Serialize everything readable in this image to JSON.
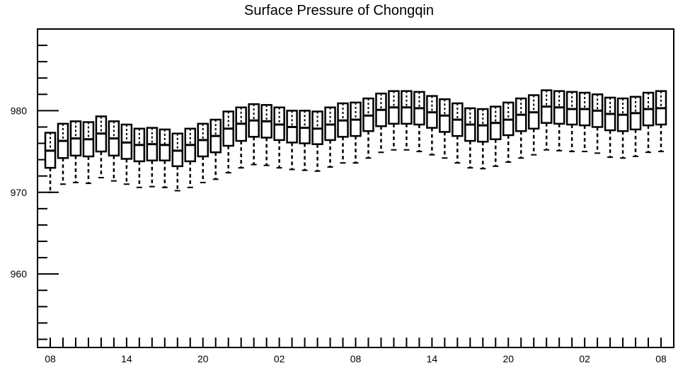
{
  "chart_data": {
    "type": "box",
    "title": "Surface Pressure of Chongqin",
    "xlabel": "",
    "ylabel": "",
    "ylim": [
      951,
      990
    ],
    "y_ticks": [
      960,
      970,
      980
    ],
    "x_tick_labels": [
      "08",
      "14",
      "20",
      "02",
      "08",
      "14",
      "20",
      "02",
      "08"
    ],
    "grid": false,
    "boxes": [
      {
        "x": 0,
        "min": 970.0,
        "q1": 973.0,
        "median": 975.1,
        "q3": 977.3,
        "max": 977.3
      },
      {
        "x": 1,
        "min": 971.0,
        "q1": 974.2,
        "median": 976.3,
        "q3": 978.4,
        "max": 978.4
      },
      {
        "x": 2,
        "min": 971.2,
        "q1": 974.5,
        "median": 976.6,
        "q3": 978.7,
        "max": 978.7
      },
      {
        "x": 3,
        "min": 971.1,
        "q1": 974.4,
        "median": 976.5,
        "q3": 978.6,
        "max": 978.6
      },
      {
        "x": 4,
        "min": 971.8,
        "q1": 975.0,
        "median": 977.2,
        "q3": 979.3,
        "max": 979.3
      },
      {
        "x": 5,
        "min": 971.4,
        "q1": 974.5,
        "median": 976.6,
        "q3": 978.7,
        "max": 978.7
      },
      {
        "x": 6,
        "min": 971.0,
        "q1": 974.1,
        "median": 976.1,
        "q3": 978.3,
        "max": 978.3
      },
      {
        "x": 7,
        "min": 970.6,
        "q1": 973.8,
        "median": 975.8,
        "q3": 977.8,
        "max": 977.8
      },
      {
        "x": 8,
        "min": 970.7,
        "q1": 973.9,
        "median": 975.9,
        "q3": 977.9,
        "max": 977.9
      },
      {
        "x": 9,
        "min": 970.6,
        "q1": 973.9,
        "median": 975.8,
        "q3": 977.7,
        "max": 977.7
      },
      {
        "x": 10,
        "min": 970.2,
        "q1": 973.2,
        "median": 975.1,
        "q3": 977.2,
        "max": 977.2
      },
      {
        "x": 11,
        "min": 970.6,
        "q1": 973.8,
        "median": 975.8,
        "q3": 977.8,
        "max": 977.8
      },
      {
        "x": 12,
        "min": 971.2,
        "q1": 974.4,
        "median": 976.4,
        "q3": 978.4,
        "max": 978.4
      },
      {
        "x": 13,
        "min": 971.6,
        "q1": 974.9,
        "median": 976.9,
        "q3": 978.9,
        "max": 978.9
      },
      {
        "x": 14,
        "min": 972.4,
        "q1": 975.7,
        "median": 977.8,
        "q3": 979.9,
        "max": 979.9
      },
      {
        "x": 15,
        "min": 973.0,
        "q1": 976.3,
        "median": 978.4,
        "q3": 980.4,
        "max": 980.4
      },
      {
        "x": 16,
        "min": 973.4,
        "q1": 976.8,
        "median": 978.8,
        "q3": 980.8,
        "max": 980.8
      },
      {
        "x": 17,
        "min": 973.3,
        "q1": 976.7,
        "median": 978.7,
        "q3": 980.7,
        "max": 980.7
      },
      {
        "x": 18,
        "min": 973.0,
        "q1": 976.4,
        "median": 978.3,
        "q3": 980.4,
        "max": 980.4
      },
      {
        "x": 19,
        "min": 972.8,
        "q1": 976.1,
        "median": 978.0,
        "q3": 980.0,
        "max": 980.0
      },
      {
        "x": 20,
        "min": 972.7,
        "q1": 976.0,
        "median": 977.9,
        "q3": 980.0,
        "max": 980.0
      },
      {
        "x": 21,
        "min": 972.6,
        "q1": 975.9,
        "median": 977.8,
        "q3": 979.9,
        "max": 979.9
      },
      {
        "x": 22,
        "min": 973.1,
        "q1": 976.4,
        "median": 978.3,
        "q3": 980.4,
        "max": 980.4
      },
      {
        "x": 23,
        "min": 973.6,
        "q1": 976.8,
        "median": 978.8,
        "q3": 980.9,
        "max": 980.9
      },
      {
        "x": 24,
        "min": 973.6,
        "q1": 976.9,
        "median": 978.9,
        "q3": 981.0,
        "max": 981.0
      },
      {
        "x": 25,
        "min": 974.2,
        "q1": 977.5,
        "median": 979.4,
        "q3": 981.5,
        "max": 981.5
      },
      {
        "x": 26,
        "min": 974.9,
        "q1": 978.1,
        "median": 980.1,
        "q3": 982.1,
        "max": 982.1
      },
      {
        "x": 27,
        "min": 975.2,
        "q1": 978.4,
        "median": 980.4,
        "q3": 982.4,
        "max": 982.4
      },
      {
        "x": 28,
        "min": 975.2,
        "q1": 978.4,
        "median": 980.4,
        "q3": 982.4,
        "max": 982.4
      },
      {
        "x": 29,
        "min": 975.0,
        "q1": 978.3,
        "median": 980.3,
        "q3": 982.3,
        "max": 982.3
      },
      {
        "x": 30,
        "min": 974.6,
        "q1": 977.9,
        "median": 979.8,
        "q3": 981.8,
        "max": 981.8
      },
      {
        "x": 31,
        "min": 974.2,
        "q1": 977.4,
        "median": 979.4,
        "q3": 981.4,
        "max": 981.4
      },
      {
        "x": 32,
        "min": 973.6,
        "q1": 976.9,
        "median": 978.9,
        "q3": 980.9,
        "max": 980.9
      },
      {
        "x": 33,
        "min": 973.0,
        "q1": 976.3,
        "median": 978.3,
        "q3": 980.3,
        "max": 980.3
      },
      {
        "x": 34,
        "min": 972.9,
        "q1": 976.2,
        "median": 978.2,
        "q3": 980.2,
        "max": 980.2
      },
      {
        "x": 35,
        "min": 973.2,
        "q1": 976.5,
        "median": 978.5,
        "q3": 980.5,
        "max": 980.5
      },
      {
        "x": 36,
        "min": 973.7,
        "q1": 977.0,
        "median": 978.9,
        "q3": 981.0,
        "max": 981.0
      },
      {
        "x": 37,
        "min": 974.2,
        "q1": 977.5,
        "median": 979.5,
        "q3": 981.5,
        "max": 981.5
      },
      {
        "x": 38,
        "min": 974.6,
        "q1": 977.8,
        "median": 979.8,
        "q3": 981.9,
        "max": 981.9
      },
      {
        "x": 39,
        "min": 975.2,
        "q1": 978.5,
        "median": 980.5,
        "q3": 982.5,
        "max": 982.5
      },
      {
        "x": 40,
        "min": 975.1,
        "q1": 978.4,
        "median": 980.4,
        "q3": 982.4,
        "max": 982.4
      },
      {
        "x": 41,
        "min": 975.0,
        "q1": 978.3,
        "median": 980.2,
        "q3": 982.3,
        "max": 982.3
      },
      {
        "x": 42,
        "min": 975.0,
        "q1": 978.2,
        "median": 980.2,
        "q3": 982.2,
        "max": 982.2
      },
      {
        "x": 43,
        "min": 974.8,
        "q1": 978.0,
        "median": 980.0,
        "q3": 982.0,
        "max": 982.0
      },
      {
        "x": 44,
        "min": 974.3,
        "q1": 977.6,
        "median": 979.6,
        "q3": 981.6,
        "max": 981.6
      },
      {
        "x": 45,
        "min": 974.2,
        "q1": 977.5,
        "median": 979.5,
        "q3": 981.5,
        "max": 981.5
      },
      {
        "x": 46,
        "min": 974.4,
        "q1": 977.7,
        "median": 979.7,
        "q3": 981.7,
        "max": 981.7
      },
      {
        "x": 47,
        "min": 974.9,
        "q1": 978.2,
        "median": 980.2,
        "q3": 982.2,
        "max": 982.2
      },
      {
        "x": 48,
        "min": 975.0,
        "q1": 978.3,
        "median": 980.3,
        "q3": 982.4,
        "max": 982.4
      }
    ]
  }
}
